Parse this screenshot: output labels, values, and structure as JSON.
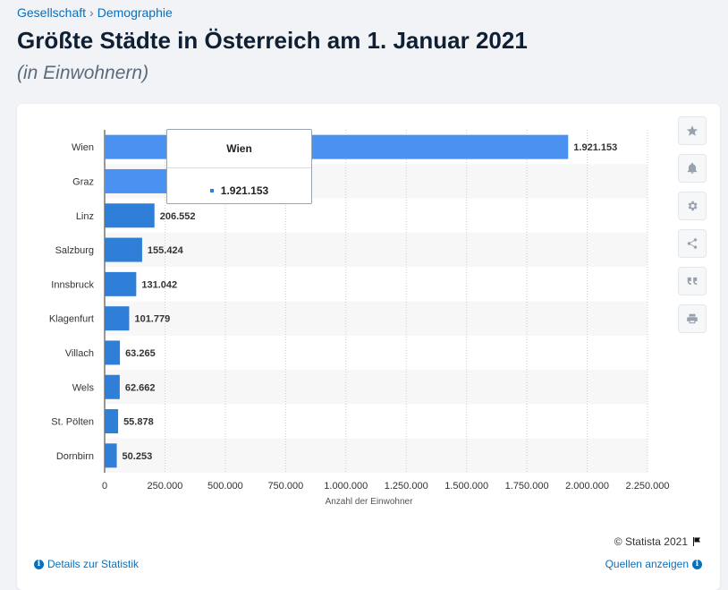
{
  "breadcrumb": {
    "category": "Gesellschaft",
    "separator": "›",
    "subcategory": "Demographie"
  },
  "header": {
    "title": "Größte Städte in Österreich am 1. Januar 2021",
    "subtitle": "(in Einwohnern)"
  },
  "chart_data": {
    "type": "bar",
    "orientation": "horizontal",
    "categories": [
      "Wien",
      "Graz",
      "Linz",
      "Salzburg",
      "Innsbruck",
      "Klagenfurt",
      "Villach",
      "Wels",
      "St. Pölten",
      "Dornbirn"
    ],
    "values": [
      1921153,
      291134,
      206552,
      155424,
      131042,
      101779,
      63265,
      62662,
      55878,
      50253
    ],
    "data_labels": [
      "1.921.153",
      "",
      "206.552",
      "155.424",
      "131.042",
      "101.779",
      "63.265",
      "62.662",
      "55.878",
      "50.253"
    ],
    "xlabel": "Anzahl der Einwohner",
    "xlim": [
      0,
      2250000
    ],
    "x_ticks": [
      "0",
      "250.000",
      "500.000",
      "750.000",
      "1.000.000",
      "1.250.000",
      "1.500.000",
      "1.750.000",
      "2.000.000",
      "2.250.000"
    ],
    "grid": true,
    "colors": {
      "bar": "#2f7ed8",
      "bar_highlight": "#4a91f2"
    }
  },
  "tooltip": {
    "title": "Wien",
    "value": "1.921.153"
  },
  "toolbar": {
    "icons": [
      "star-icon",
      "bell-icon",
      "gear-icon",
      "share-icon",
      "quote-icon",
      "print-icon"
    ]
  },
  "footer": {
    "copyright": "© Statista 2021",
    "details_label": "Details zur Statistik",
    "sources_label": "Quellen anzeigen"
  }
}
